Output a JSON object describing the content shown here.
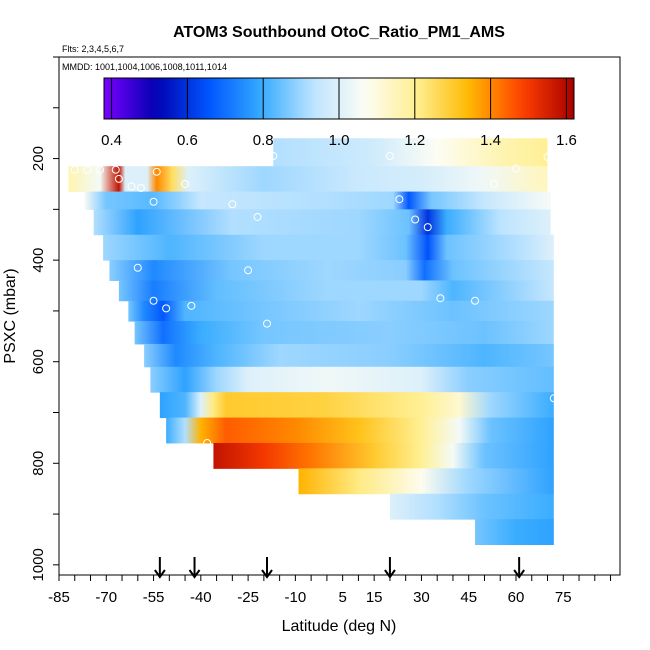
{
  "chart_data": {
    "type": "heatmap",
    "title": "ATOM3 Southbound OtoC_Ratio_PM1_AMS",
    "flights_text": "Flts: 2,3,4,5,6,7",
    "dates_text": "MMDD: 1001,1004,1006,1008,1011,1014",
    "xlabel": "Latitude (deg N)",
    "ylabel": "PSXC (mbar)",
    "xlim": [
      -85,
      93
    ],
    "ylim": [
      1020,
      0
    ],
    "x_ticks": [
      -85,
      -70,
      -55,
      -40,
      -25,
      -10,
      5,
      15,
      30,
      45,
      60,
      75
    ],
    "y_ticks": [
      200,
      400,
      600,
      800,
      1000
    ],
    "colorbar": {
      "min": 0.38,
      "max": 1.62,
      "ticks": [
        0.4,
        0.6,
        0.8,
        1.0,
        1.2,
        1.4,
        1.6
      ],
      "colors": [
        "#7b00ff",
        "#0000b0",
        "#0055ff",
        "#33aaff",
        "#bde4ff",
        "#fdfdf5",
        "#ffef90",
        "#ffb800",
        "#ff4000",
        "#a80000"
      ]
    },
    "arrows_lat": [
      -53,
      -42,
      -19,
      20,
      61
    ],
    "layers": [
      {
        "p_top": 160,
        "p_bot": 215,
        "lat_min": -17,
        "lat_max": 70,
        "stops": [
          [
            -17,
            0.92
          ],
          [
            15,
            0.97
          ],
          [
            35,
            1.07
          ],
          [
            55,
            1.16
          ],
          [
            70,
            1.2
          ]
        ]
      },
      {
        "p_top": 215,
        "p_bot": 265,
        "lat_min": -82,
        "lat_max": 70,
        "stops": [
          [
            -82,
            1.16
          ],
          [
            -72,
            1.05
          ],
          [
            -66,
            1.58
          ],
          [
            -64,
            1.0
          ],
          [
            -57,
            1.0
          ],
          [
            -54,
            1.4
          ],
          [
            -49,
            1.25
          ],
          [
            -44,
            1.0
          ],
          [
            -20,
            0.9
          ],
          [
            10,
            0.96
          ],
          [
            30,
            0.98
          ],
          [
            50,
            1.04
          ],
          [
            68,
            1.14
          ]
        ]
      },
      {
        "p_top": 265,
        "p_bot": 300,
        "lat_min": -77,
        "lat_max": 71,
        "stops": [
          [
            -77,
            1.06
          ],
          [
            -70,
            0.86
          ],
          [
            -55,
            0.83
          ],
          [
            -40,
            0.95
          ],
          [
            0,
            0.92
          ],
          [
            21,
            0.9
          ],
          [
            26,
            0.66
          ],
          [
            33,
            0.86
          ],
          [
            50,
            0.95
          ],
          [
            70,
            1.05
          ]
        ]
      },
      {
        "p_top": 300,
        "p_bot": 350,
        "lat_min": -74,
        "lat_max": 71,
        "stops": [
          [
            -74,
            0.92
          ],
          [
            -60,
            0.78
          ],
          [
            -30,
            0.92
          ],
          [
            10,
            0.9
          ],
          [
            26,
            0.85
          ],
          [
            32,
            0.6
          ],
          [
            38,
            0.8
          ],
          [
            55,
            0.93
          ],
          [
            71,
            1.0
          ]
        ]
      },
      {
        "p_top": 350,
        "p_bot": 400,
        "lat_min": -71,
        "lat_max": 72,
        "stops": [
          [
            -71,
            0.9
          ],
          [
            -50,
            0.82
          ],
          [
            -20,
            0.9
          ],
          [
            10,
            0.9
          ],
          [
            25,
            0.85
          ],
          [
            32,
            0.65
          ],
          [
            38,
            0.85
          ],
          [
            60,
            0.92
          ],
          [
            72,
            1.0
          ]
        ]
      },
      {
        "p_top": 400,
        "p_bot": 440,
        "lat_min": -69,
        "lat_max": 72,
        "stops": [
          [
            -69,
            0.88
          ],
          [
            -55,
            0.74
          ],
          [
            -30,
            0.86
          ],
          [
            0,
            0.9
          ],
          [
            25,
            0.88
          ],
          [
            31,
            0.7
          ],
          [
            40,
            0.85
          ],
          [
            72,
            0.95
          ]
        ]
      },
      {
        "p_top": 440,
        "p_bot": 480,
        "lat_min": -66,
        "lat_max": 72,
        "stops": [
          [
            -66,
            0.86
          ],
          [
            -55,
            0.72
          ],
          [
            -35,
            0.84
          ],
          [
            0,
            0.9
          ],
          [
            30,
            0.9
          ],
          [
            40,
            0.82
          ],
          [
            72,
            0.95
          ]
        ]
      },
      {
        "p_top": 480,
        "p_bot": 520,
        "lat_min": -63,
        "lat_max": 72,
        "stops": [
          [
            -63,
            0.86
          ],
          [
            -58,
            0.74
          ],
          [
            -52,
            0.66
          ],
          [
            -45,
            0.82
          ],
          [
            -20,
            0.86
          ],
          [
            10,
            0.9
          ],
          [
            40,
            0.85
          ],
          [
            72,
            0.9
          ]
        ]
      },
      {
        "p_top": 520,
        "p_bot": 565,
        "lat_min": -61,
        "lat_max": 72,
        "stops": [
          [
            -61,
            0.86
          ],
          [
            -52,
            0.7
          ],
          [
            -40,
            0.8
          ],
          [
            -20,
            0.86
          ],
          [
            20,
            0.88
          ],
          [
            50,
            0.85
          ],
          [
            72,
            0.9
          ]
        ]
      },
      {
        "p_top": 565,
        "p_bot": 610,
        "lat_min": -58,
        "lat_max": 72,
        "stops": [
          [
            -58,
            0.88
          ],
          [
            -48,
            0.74
          ],
          [
            -35,
            0.82
          ],
          [
            -15,
            0.9
          ],
          [
            20,
            0.88
          ],
          [
            50,
            0.82
          ],
          [
            72,
            0.86
          ]
        ]
      },
      {
        "p_top": 610,
        "p_bot": 660,
        "lat_min": -56,
        "lat_max": 72,
        "stops": [
          [
            -56,
            0.88
          ],
          [
            -45,
            0.78
          ],
          [
            -35,
            0.9
          ],
          [
            -25,
            1.0
          ],
          [
            0,
            1.04
          ],
          [
            30,
            1.0
          ],
          [
            45,
            0.88
          ],
          [
            72,
            0.84
          ]
        ]
      },
      {
        "p_top": 660,
        "p_bot": 710,
        "lat_min": -53,
        "lat_max": 72,
        "stops": [
          [
            -53,
            0.78
          ],
          [
            -45,
            0.82
          ],
          [
            -40,
            1.0
          ],
          [
            -36,
            1.22
          ],
          [
            -32,
            1.3
          ],
          [
            0,
            1.28
          ],
          [
            30,
            1.2
          ],
          [
            42,
            1.12
          ],
          [
            52,
            0.9
          ],
          [
            72,
            0.8
          ]
        ]
      },
      {
        "p_top": 710,
        "p_bot": 760,
        "lat_min": -51,
        "lat_max": 72,
        "stops": [
          [
            -51,
            0.8
          ],
          [
            -45,
            0.92
          ],
          [
            -40,
            1.35
          ],
          [
            -32,
            1.45
          ],
          [
            -10,
            1.4
          ],
          [
            10,
            1.32
          ],
          [
            30,
            1.2
          ],
          [
            42,
            1.05
          ],
          [
            52,
            0.85
          ],
          [
            72,
            0.78
          ]
        ]
      },
      {
        "p_top": 760,
        "p_bot": 810,
        "lat_min": -36,
        "lat_max": 72,
        "stops": [
          [
            -36,
            1.58
          ],
          [
            -20,
            1.5
          ],
          [
            -5,
            1.42
          ],
          [
            15,
            1.3
          ],
          [
            30,
            1.2
          ],
          [
            40,
            1.05
          ],
          [
            50,
            0.85
          ],
          [
            72,
            0.78
          ]
        ]
      },
      {
        "p_top": 810,
        "p_bot": 860,
        "lat_min": -9,
        "lat_max": 72,
        "stops": [
          [
            -9,
            1.35
          ],
          [
            10,
            1.22
          ],
          [
            30,
            1.08
          ],
          [
            45,
            0.9
          ],
          [
            72,
            0.78
          ]
        ]
      },
      {
        "p_top": 860,
        "p_bot": 910,
        "lat_min": 20,
        "lat_max": 72,
        "stops": [
          [
            20,
            1.0
          ],
          [
            35,
            0.92
          ],
          [
            50,
            0.85
          ],
          [
            72,
            0.8
          ]
        ]
      },
      {
        "p_top": 910,
        "p_bot": 960,
        "lat_min": 47,
        "lat_max": 72,
        "stops": [
          [
            47,
            0.86
          ],
          [
            60,
            0.8
          ],
          [
            72,
            0.78
          ]
        ]
      }
    ],
    "points": [
      [
        -80,
        222
      ],
      [
        -76,
        222
      ],
      [
        -72,
        222
      ],
      [
        -67,
        222
      ],
      [
        -66,
        240
      ],
      [
        -62,
        255
      ],
      [
        -59,
        258
      ],
      [
        -55,
        285
      ],
      [
        -54,
        226
      ],
      [
        -45,
        250
      ],
      [
        -30,
        290
      ],
      [
        -22,
        315
      ],
      [
        -17,
        195
      ],
      [
        -60,
        415
      ],
      [
        -55,
        480
      ],
      [
        -51,
        495
      ],
      [
        -43,
        490
      ],
      [
        -19,
        525
      ],
      [
        -25,
        420
      ],
      [
        -56,
        715
      ],
      [
        -38,
        760
      ],
      [
        20,
        195
      ],
      [
        23,
        280
      ],
      [
        28,
        320
      ],
      [
        32,
        335
      ],
      [
        36,
        475
      ],
      [
        47,
        480
      ],
      [
        53,
        250
      ],
      [
        60,
        220
      ],
      [
        70,
        197
      ],
      [
        72,
        672
      ]
    ]
  }
}
